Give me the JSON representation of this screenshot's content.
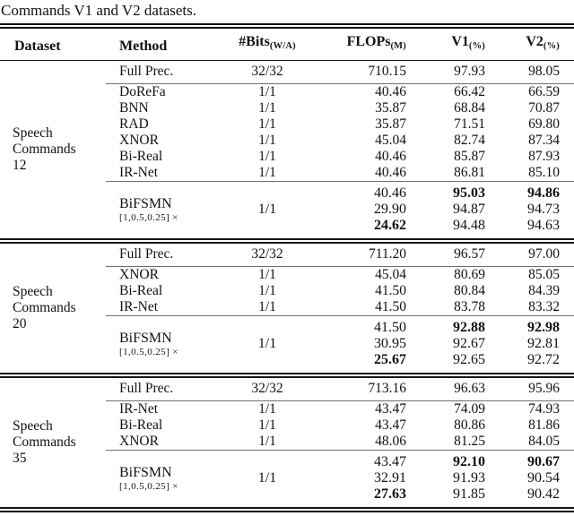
{
  "caption": "Commands V1 and V2 datasets.",
  "colors": {
    "background": "#ffffff",
    "text": "#121212",
    "rule_dark": "#141414",
    "rule_gray": "#6e6e6e"
  },
  "header": {
    "dataset": "Dataset",
    "method": "Method",
    "bits": "#Bits",
    "bits_sub": "(W/A)",
    "flops": "FLOPs",
    "flops_sub": "(M)",
    "v1": "V1",
    "v1_sub": "(%)",
    "v2": "V2",
    "v2_sub": "(%)"
  },
  "sections": [
    {
      "dataset_lines": [
        "Speech",
        "Commands",
        "12"
      ],
      "full_prec": {
        "method": "Full Prec.",
        "bits": "32/32",
        "flops": "710.15",
        "v1": "97.93",
        "v2": "98.05"
      },
      "baselines": [
        {
          "method": "DoReFa",
          "bits": "1/1",
          "flops": "40.46",
          "v1": "66.42",
          "v2": "66.59"
        },
        {
          "method": "BNN",
          "bits": "1/1",
          "flops": "35.87",
          "v1": "68.84",
          "v2": "70.87"
        },
        {
          "method": "RAD",
          "bits": "1/1",
          "flops": "35.87",
          "v1": "71.51",
          "v2": "69.80"
        },
        {
          "method": "XNOR",
          "bits": "1/1",
          "flops": "45.04",
          "v1": "82.74",
          "v2": "87.34"
        },
        {
          "method": "Bi-Real",
          "bits": "1/1",
          "flops": "40.46",
          "v1": "85.87",
          "v2": "87.93"
        },
        {
          "method": "IR-Net",
          "bits": "1/1",
          "flops": "40.46",
          "v1": "86.81",
          "v2": "85.10"
        }
      ],
      "bifsmn": {
        "name": "BiFSMN",
        "subscript": "[1,0.5,0.25] ×",
        "bits": "1/1",
        "rows": [
          {
            "flops": "40.46",
            "v1": "95.03",
            "v2": "94.86"
          },
          {
            "flops": "29.90",
            "v1": "94.87",
            "v2": "94.73"
          },
          {
            "flops": "24.62",
            "v1": "94.48",
            "v2": "94.63"
          }
        ]
      }
    },
    {
      "dataset_lines": [
        "Speech",
        "Commands",
        "20"
      ],
      "full_prec": {
        "method": "Full Prec.",
        "bits": "32/32",
        "flops": "711.20",
        "v1": "96.57",
        "v2": "97.00"
      },
      "baselines": [
        {
          "method": "XNOR",
          "bits": "1/1",
          "flops": "45.04",
          "v1": "80.69",
          "v2": "85.05"
        },
        {
          "method": "Bi-Real",
          "bits": "1/1",
          "flops": "41.50",
          "v1": "80.84",
          "v2": "84.39"
        },
        {
          "method": "IR-Net",
          "bits": "1/1",
          "flops": "41.50",
          "v1": "83.78",
          "v2": "83.32"
        }
      ],
      "bifsmn": {
        "name": "BiFSMN",
        "subscript": "[1,0.5,0.25] ×",
        "bits": "1/1",
        "rows": [
          {
            "flops": "41.50",
            "v1": "92.88",
            "v2": "92.98"
          },
          {
            "flops": "30.95",
            "v1": "92.67",
            "v2": "92.81"
          },
          {
            "flops": "25.67",
            "v1": "92.65",
            "v2": "92.72"
          }
        ]
      }
    },
    {
      "dataset_lines": [
        "Speech",
        "Commands",
        "35"
      ],
      "full_prec": {
        "method": "Full Prec.",
        "bits": "32/32",
        "flops": "713.16",
        "v1": "96.63",
        "v2": "95.96"
      },
      "baselines": [
        {
          "method": "IR-Net",
          "bits": "1/1",
          "flops": "43.47",
          "v1": "74.09",
          "v2": "74.93"
        },
        {
          "method": "Bi-Real",
          "bits": "1/1",
          "flops": "43.47",
          "v1": "80.86",
          "v2": "81.86"
        },
        {
          "method": "XNOR",
          "bits": "1/1",
          "flops": "48.06",
          "v1": "81.25",
          "v2": "84.05"
        }
      ],
      "bifsmn": {
        "name": "BiFSMN",
        "subscript": "[1,0.5,0.25] ×",
        "bits": "1/1",
        "rows": [
          {
            "flops": "43.47",
            "v1": "92.10",
            "v2": "90.67"
          },
          {
            "flops": "32.91",
            "v1": "91.93",
            "v2": "90.54"
          },
          {
            "flops": "27.63",
            "v1": "91.85",
            "v2": "90.42"
          }
        ]
      }
    }
  ]
}
